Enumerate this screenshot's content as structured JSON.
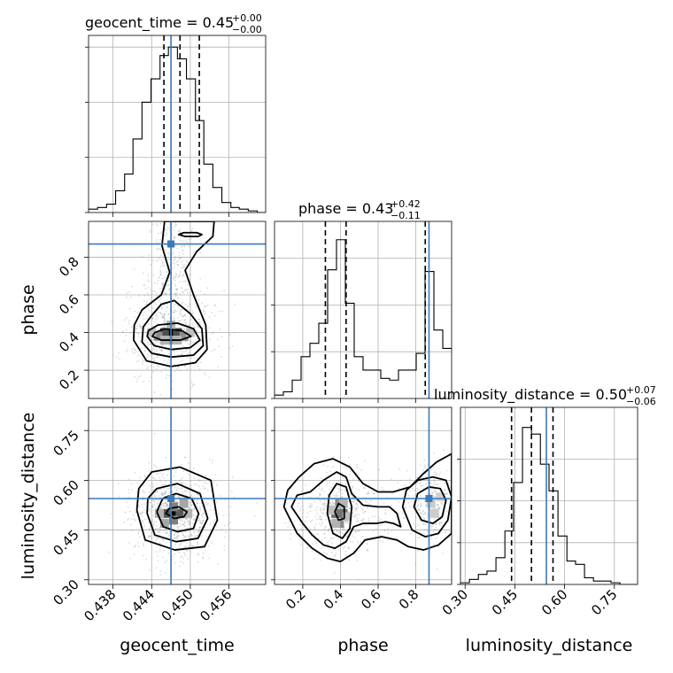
{
  "chart_data": {
    "type": "corner",
    "parameters": [
      "geocent_time",
      "phase",
      "luminosity_distance"
    ],
    "truths": [
      0.447,
      0.87,
      0.545
    ],
    "colors": {
      "truth": "#3a7ab8",
      "hist": "#000000",
      "grid": "#b0b0b0",
      "points": "#9a9a9a"
    },
    "grid": true,
    "diagonal": [
      {
        "param": "geocent_time",
        "title": {
          "lhs": "geocent_time = 0.45",
          "sup": "+0.00",
          "sub": "−0.00"
        },
        "xlim": [
          0.4342,
          0.4617
        ],
        "edges": [
          0.4342,
          0.4356,
          0.437,
          0.4384,
          0.4398,
          0.4411,
          0.4425,
          0.4439,
          0.4453,
          0.4466,
          0.448,
          0.4494,
          0.4508,
          0.4521,
          0.4535,
          0.4549,
          0.4563,
          0.4576,
          0.459,
          0.4604,
          0.4617
        ],
        "counts": [
          0.02,
          0.03,
          0.05,
          0.13,
          0.23,
          0.44,
          0.66,
          0.8,
          0.94,
          0.99,
          0.92,
          0.8,
          0.55,
          0.29,
          0.15,
          0.06,
          0.03,
          0.02,
          0.01,
          0.0
        ],
        "ymax": 1.0,
        "quantiles": [
          0.4459,
          0.4484,
          0.4514
        ],
        "yticks": [
          0.0,
          0.33,
          0.66,
          0.99
        ]
      },
      {
        "param": "phase",
        "title": {
          "lhs": "phase = 0.43",
          "sup": "+0.42",
          "sub": "−0.11"
        },
        "xlim": [
          0.05,
          0.99
        ],
        "edges": [
          0.05,
          0.097,
          0.144,
          0.191,
          0.238,
          0.285,
          0.332,
          0.379,
          0.426,
          0.473,
          0.52,
          0.567,
          0.614,
          0.661,
          0.708,
          0.755,
          0.802,
          0.849,
          0.896,
          0.943,
          0.99
        ],
        "counts": [
          0.02,
          0.04,
          0.11,
          0.25,
          0.33,
          0.45,
          0.77,
          0.95,
          0.57,
          0.25,
          0.17,
          0.17,
          0.12,
          0.11,
          0.17,
          0.17,
          0.27,
          0.76,
          0.41,
          0.3
        ],
        "ymax": 1.0,
        "quantiles": [
          0.32,
          0.43,
          0.85
        ],
        "yticks": [
          0.0,
          0.28,
          0.56,
          0.84
        ]
      },
      {
        "param": "luminosity_distance",
        "title": {
          "lhs": "luminosity_distance = 0.50",
          "sup": "+0.07",
          "sub": "−0.06"
        },
        "xlim": [
          0.286,
          0.82
        ],
        "edges": [
          0.286,
          0.313,
          0.34,
          0.366,
          0.393,
          0.42,
          0.446,
          0.473,
          0.5,
          0.527,
          0.553,
          0.58,
          0.607,
          0.633,
          0.66,
          0.687,
          0.714,
          0.74,
          0.767,
          0.794,
          0.82
        ],
        "counts": [
          0.01,
          0.03,
          0.06,
          0.08,
          0.16,
          0.32,
          0.61,
          0.94,
          0.9,
          0.72,
          0.56,
          0.29,
          0.14,
          0.12,
          0.04,
          0.02,
          0.02,
          0.01,
          0.0,
          0.0
        ],
        "ymax": 1.0,
        "quantiles": [
          0.44,
          0.5,
          0.565
        ],
        "yticks": [
          0.0,
          0.25,
          0.5,
          0.75
        ]
      }
    ],
    "pairs": [
      {
        "x": "geocent_time",
        "y": "phase",
        "xlim": [
          0.4342,
          0.4617
        ],
        "ylim": [
          0.05,
          0.99
        ],
        "contours": [
          [
            [
              0.4441,
              0.38
            ],
            [
              0.4455,
              0.36
            ],
            [
              0.4485,
              0.36
            ],
            [
              0.4501,
              0.38
            ],
            [
              0.4487,
              0.41
            ],
            [
              0.446,
              0.42
            ],
            [
              0.4445,
              0.4
            ]
          ],
          [
            [
              0.4433,
              0.38
            ],
            [
              0.4444,
              0.33
            ],
            [
              0.447,
              0.31
            ],
            [
              0.45,
              0.32
            ],
            [
              0.4515,
              0.36
            ],
            [
              0.4505,
              0.42
            ],
            [
              0.448,
              0.45
            ],
            [
              0.445,
              0.44
            ],
            [
              0.4435,
              0.41
            ]
          ],
          [
            [
              0.4425,
              0.35
            ],
            [
              0.444,
              0.29
            ],
            [
              0.447,
              0.27
            ],
            [
              0.4505,
              0.28
            ],
            [
              0.452,
              0.33
            ],
            [
              0.4518,
              0.42
            ],
            [
              0.45,
              0.5
            ],
            [
              0.4475,
              0.57
            ],
            [
              0.4455,
              0.55
            ],
            [
              0.444,
              0.49
            ],
            [
              0.4427,
              0.43
            ]
          ],
          [
            [
              0.4412,
              0.36
            ],
            [
              0.4432,
              0.25
            ],
            [
              0.447,
              0.22
            ],
            [
              0.4508,
              0.24
            ],
            [
              0.4526,
              0.31
            ],
            [
              0.4524,
              0.44
            ],
            [
              0.4505,
              0.6
            ],
            [
              0.4492,
              0.73
            ],
            [
              0.451,
              0.83
            ],
            [
              0.4535,
              0.91
            ],
            [
              0.4537,
              0.99
            ],
            [
              0.446,
              0.99
            ],
            [
              0.4456,
              0.86
            ],
            [
              0.4468,
              0.72
            ],
            [
              0.4455,
              0.6
            ],
            [
              0.4425,
              0.52
            ],
            [
              0.4413,
              0.44
            ]
          ],
          [
            [
              0.4482,
              0.92
            ],
            [
              0.4492,
              0.91
            ],
            [
              0.4512,
              0.91
            ],
            [
              0.4518,
              0.92
            ],
            [
              0.451,
              0.93
            ],
            [
              0.449,
              0.93
            ]
          ]
        ],
        "cells": [
          [
            0.447,
            0.4,
            1.0
          ],
          [
            0.446,
            0.4,
            0.7
          ],
          [
            0.448,
            0.4,
            0.7
          ],
          [
            0.445,
            0.38,
            0.45
          ],
          [
            0.449,
            0.38,
            0.45
          ],
          [
            0.447,
            0.36,
            0.4
          ],
          [
            0.447,
            0.44,
            0.3
          ],
          [
            0.446,
            0.36,
            0.3
          ],
          [
            0.448,
            0.36,
            0.3
          ],
          [
            0.45,
            0.4,
            0.25
          ],
          [
            0.444,
            0.4,
            0.25
          ]
        ]
      },
      {
        "x": "geocent_time",
        "y": "luminosity_distance",
        "xlim": [
          0.4342,
          0.4617
        ],
        "ylim": [
          0.286,
          0.82
        ],
        "contours": [
          [
            [
              0.4462,
              0.5
            ],
            [
              0.4475,
              0.485
            ],
            [
              0.449,
              0.49
            ],
            [
              0.4495,
              0.505
            ],
            [
              0.4482,
              0.52
            ],
            [
              0.4467,
              0.515
            ]
          ],
          [
            [
              0.4448,
              0.505
            ],
            [
              0.4458,
              0.46
            ],
            [
              0.448,
              0.445
            ],
            [
              0.4505,
              0.455
            ],
            [
              0.4513,
              0.5
            ],
            [
              0.4502,
              0.545
            ],
            [
              0.4478,
              0.56
            ],
            [
              0.4457,
              0.545
            ]
          ],
          [
            [
              0.4433,
              0.5
            ],
            [
              0.4445,
              0.435
            ],
            [
              0.4478,
              0.415
            ],
            [
              0.4512,
              0.425
            ],
            [
              0.4527,
              0.485
            ],
            [
              0.4515,
              0.56
            ],
            [
              0.448,
              0.59
            ],
            [
              0.4448,
              0.575
            ],
            [
              0.4434,
              0.545
            ]
          ],
          [
            [
              0.4417,
              0.51
            ],
            [
              0.443,
              0.42
            ],
            [
              0.4476,
              0.39
            ],
            [
              0.4522,
              0.4
            ],
            [
              0.4542,
              0.48
            ],
            [
              0.4532,
              0.6
            ],
            [
              0.4484,
              0.64
            ],
            [
              0.444,
              0.625
            ],
            [
              0.442,
              0.575
            ]
          ]
        ],
        "cells": [
          [
            0.4474,
            0.5,
            1.0
          ],
          [
            0.4464,
            0.5,
            0.65
          ],
          [
            0.4484,
            0.5,
            0.65
          ],
          [
            0.4474,
            0.52,
            0.5
          ],
          [
            0.4474,
            0.48,
            0.5
          ],
          [
            0.446,
            0.47,
            0.35
          ],
          [
            0.449,
            0.53,
            0.35
          ],
          [
            0.4452,
            0.5,
            0.3
          ],
          [
            0.4496,
            0.5,
            0.3
          ]
        ]
      },
      {
        "x": "phase",
        "y": "luminosity_distance",
        "xlim": [
          0.05,
          0.99
        ],
        "ylim": [
          0.286,
          0.82
        ],
        "contours": [
          [
            [
              0.37,
              0.505
            ],
            [
              0.39,
              0.48
            ],
            [
              0.42,
              0.485
            ],
            [
              0.42,
              0.52
            ],
            [
              0.39,
              0.53
            ]
          ],
          [
            [
              0.33,
              0.5
            ],
            [
              0.36,
              0.44
            ],
            [
              0.41,
              0.425
            ],
            [
              0.45,
              0.455
            ],
            [
              0.46,
              0.52
            ],
            [
              0.43,
              0.58
            ],
            [
              0.38,
              0.59
            ],
            [
              0.34,
              0.555
            ]
          ],
          [
            [
              0.14,
              0.52
            ],
            [
              0.2,
              0.47
            ],
            [
              0.25,
              0.435
            ],
            [
              0.31,
              0.405
            ],
            [
              0.37,
              0.395
            ],
            [
              0.43,
              0.415
            ],
            [
              0.47,
              0.46
            ],
            [
              0.52,
              0.47
            ],
            [
              0.59,
              0.47
            ],
            [
              0.64,
              0.475
            ],
            [
              0.68,
              0.47
            ],
            [
              0.72,
              0.46
            ],
            [
              0.7,
              0.5
            ],
            [
              0.66,
              0.52
            ],
            [
              0.6,
              0.52
            ],
            [
              0.52,
              0.525
            ],
            [
              0.46,
              0.56
            ],
            [
              0.43,
              0.61
            ],
            [
              0.38,
              0.625
            ],
            [
              0.31,
              0.6
            ],
            [
              0.24,
              0.565
            ],
            [
              0.17,
              0.555
            ]
          ],
          [
            [
              0.1,
              0.52
            ],
            [
              0.17,
              0.44
            ],
            [
              0.25,
              0.395
            ],
            [
              0.33,
              0.365
            ],
            [
              0.4,
              0.355
            ],
            [
              0.47,
              0.38
            ],
            [
              0.53,
              0.42
            ],
            [
              0.62,
              0.43
            ],
            [
              0.7,
              0.42
            ],
            [
              0.76,
              0.4
            ],
            [
              0.84,
              0.39
            ],
            [
              0.92,
              0.405
            ],
            [
              0.99,
              0.44
            ],
            [
              0.99,
              0.68
            ],
            [
              0.91,
              0.655
            ],
            [
              0.84,
              0.62
            ],
            [
              0.77,
              0.58
            ],
            [
              0.68,
              0.565
            ],
            [
              0.6,
              0.565
            ],
            [
              0.52,
              0.59
            ],
            [
              0.45,
              0.64
            ],
            [
              0.36,
              0.665
            ],
            [
              0.26,
              0.65
            ],
            [
              0.18,
              0.61
            ],
            [
              0.12,
              0.57
            ]
          ],
          [
            [
              0.73,
              0.52
            ],
            [
              0.78,
              0.45
            ],
            [
              0.85,
              0.43
            ],
            [
              0.92,
              0.44
            ],
            [
              0.97,
              0.48
            ],
            [
              0.99,
              0.55
            ],
            [
              0.96,
              0.6
            ],
            [
              0.89,
              0.61
            ],
            [
              0.81,
              0.6
            ],
            [
              0.75,
              0.57
            ]
          ],
          [
            [
              0.79,
              0.52
            ],
            [
              0.83,
              0.48
            ],
            [
              0.89,
              0.47
            ],
            [
              0.94,
              0.49
            ],
            [
              0.96,
              0.54
            ],
            [
              0.93,
              0.575
            ],
            [
              0.87,
              0.58
            ],
            [
              0.81,
              0.56
            ]
          ]
        ],
        "cells": [
          [
            0.395,
            0.5,
            1.0
          ],
          [
            0.375,
            0.5,
            0.55
          ],
          [
            0.415,
            0.5,
            0.55
          ],
          [
            0.395,
            0.53,
            0.45
          ],
          [
            0.395,
            0.47,
            0.45
          ],
          [
            0.375,
            0.47,
            0.3
          ],
          [
            0.415,
            0.53,
            0.3
          ],
          [
            0.355,
            0.51,
            0.25
          ],
          [
            0.435,
            0.49,
            0.25
          ],
          [
            0.88,
            0.53,
            0.2
          ],
          [
            0.9,
            0.5,
            0.2
          ],
          [
            0.93,
            0.55,
            0.18
          ]
        ]
      }
    ],
    "axes_ticks": {
      "geocent_time": {
        "values": [
          0.438,
          0.444,
          0.45,
          0.456
        ],
        "labels": [
          "0.438",
          "0.444",
          "0.450",
          "0.456"
        ]
      },
      "phase_x": {
        "values": [
          0.2,
          0.4,
          0.6,
          0.8
        ],
        "labels": [
          "0.2",
          "0.4",
          "0.6",
          "0.8"
        ]
      },
      "phase_y": {
        "values": [
          0.2,
          0.4,
          0.6,
          0.8
        ],
        "labels": [
          "0.2",
          "0.4",
          "0.6",
          "0.8"
        ]
      },
      "luminosity_distance": {
        "values": [
          0.3,
          0.45,
          0.6,
          0.75
        ],
        "labels": [
          "0.30",
          "0.45",
          "0.60",
          "0.75"
        ]
      }
    },
    "xlabels": [
      "geocent_time",
      "phase",
      "luminosity_distance"
    ],
    "ylabels": [
      "phase",
      "luminosity_distance"
    ]
  }
}
